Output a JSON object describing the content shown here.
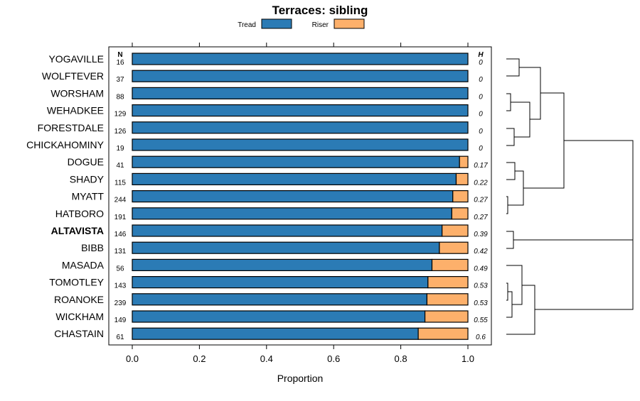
{
  "chart_data": {
    "type": "bar",
    "orientation": "horizontal",
    "stacked": true,
    "title": "Terraces: sibling",
    "xlabel": "Proportion",
    "xlim": [
      -0.06,
      1.07
    ],
    "xticks": [
      "0.0",
      "0.2",
      "0.4",
      "0.6",
      "0.8",
      "1.0"
    ],
    "xtick_values": [
      0,
      0.2,
      0.4,
      0.6,
      0.8,
      1.0
    ],
    "n_header": "N",
    "h_header": "H",
    "legend_position": "top",
    "highlight": "ALTAVISTA",
    "colors": {
      "Tread": "#2b7bb5",
      "Riser": "#fdb06b"
    },
    "series": [
      {
        "name": "Tread"
      },
      {
        "name": "Riser"
      }
    ],
    "rows": [
      {
        "label": "YOGAVILLE",
        "n": "16",
        "h": "0",
        "riser": 0.0
      },
      {
        "label": "WOLFTEVER",
        "n": "37",
        "h": "0",
        "riser": 0.0
      },
      {
        "label": "WORSHAM",
        "n": "88",
        "h": "0",
        "riser": 0.0
      },
      {
        "label": "WEHADKEE",
        "n": "129",
        "h": "0",
        "riser": 0.0
      },
      {
        "label": "FORESTDALE",
        "n": "126",
        "h": "0",
        "riser": 0.0
      },
      {
        "label": "CHICKAHOMINY",
        "n": "19",
        "h": "0",
        "riser": 0.0
      },
      {
        "label": "DOGUE",
        "n": "41",
        "h": "0.17",
        "riser": 0.025
      },
      {
        "label": "SHADY",
        "n": "115",
        "h": "0.22",
        "riser": 0.035
      },
      {
        "label": "MYATT",
        "n": "244",
        "h": "0.27",
        "riser": 0.045
      },
      {
        "label": "HATBORO",
        "n": "191",
        "h": "0.27",
        "riser": 0.048
      },
      {
        "label": "ALTAVISTA",
        "n": "146",
        "h": "0.39",
        "riser": 0.077
      },
      {
        "label": "BIBB",
        "n": "131",
        "h": "0.42",
        "riser": 0.085
      },
      {
        "label": "MASADA",
        "n": "56",
        "h": "0.49",
        "riser": 0.107
      },
      {
        "label": "TOMOTLEY",
        "n": "143",
        "h": "0.53",
        "riser": 0.119
      },
      {
        "label": "ROANOKE",
        "n": "239",
        "h": "0.53",
        "riser": 0.122
      },
      {
        "label": "WICKHAM",
        "n": "149",
        "h": "0.55",
        "riser": 0.128
      },
      {
        "label": "CHASTAIN",
        "n": "61",
        "h": "0.6",
        "riser": 0.148
      }
    ]
  }
}
